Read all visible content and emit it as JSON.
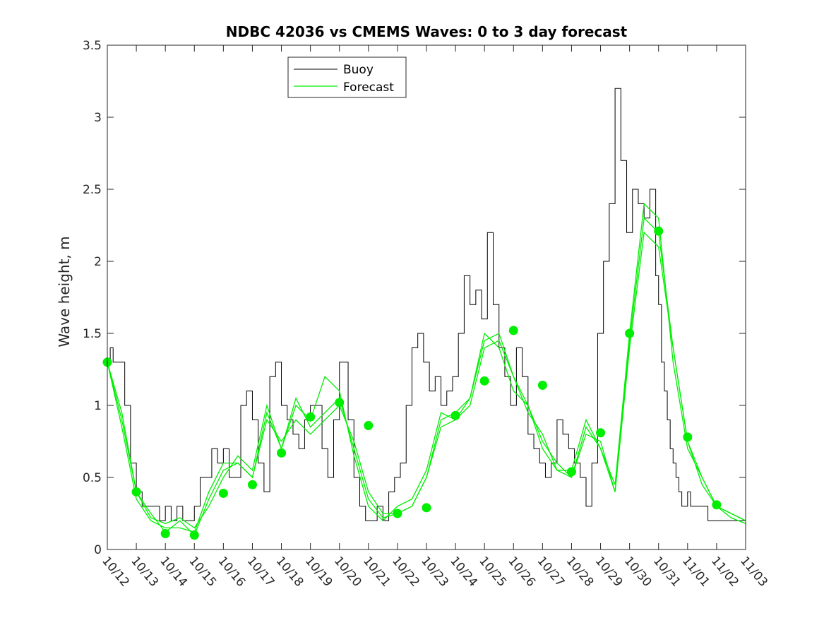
{
  "chart_data": {
    "type": "line",
    "title": "NDBC 42036 vs CMEMS Waves: 0 to 3 day forecast",
    "xlabel": "",
    "ylabel": "Wave height, m",
    "xlim": [
      "10/12",
      "11/03"
    ],
    "ylim": [
      0,
      3.5
    ],
    "x_ticks": [
      "10/12",
      "10/13",
      "10/14",
      "10/15",
      "10/16",
      "10/17",
      "10/18",
      "10/19",
      "10/20",
      "10/21",
      "10/22",
      "10/23",
      "10/24",
      "10/25",
      "10/26",
      "10/27",
      "10/28",
      "10/29",
      "10/30",
      "10/31",
      "11/01",
      "11/02",
      "11/03"
    ],
    "y_ticks": [
      "0",
      "0.5",
      "1",
      "1.5",
      "2",
      "2.5",
      "3",
      "3.5"
    ],
    "grid": false,
    "legend": {
      "placement": "top-left",
      "entries": [
        "Buoy",
        "Forecast"
      ]
    },
    "colors": {
      "buoy": "#000000",
      "forecast": "#00ee00"
    },
    "series": [
      {
        "name": "Buoy",
        "x": [
          0,
          0.1,
          0.2,
          0.3,
          0.5,
          0.6,
          0.8,
          1.0,
          1.2,
          1.4,
          1.6,
          1.8,
          2.0,
          2.2,
          2.4,
          2.6,
          2.8,
          3.0,
          3.2,
          3.4,
          3.6,
          3.8,
          4.0,
          4.2,
          4.4,
          4.6,
          4.8,
          5.0,
          5.2,
          5.4,
          5.6,
          5.8,
          6.0,
          6.2,
          6.4,
          6.6,
          6.8,
          7.0,
          7.2,
          7.4,
          7.6,
          7.8,
          8.0,
          8.1,
          8.3,
          8.5,
          8.7,
          8.9,
          9.1,
          9.3,
          9.5,
          9.7,
          9.9,
          10.1,
          10.3,
          10.5,
          10.7,
          10.9,
          11.1,
          11.3,
          11.5,
          11.7,
          11.9,
          12.1,
          12.3,
          12.5,
          12.7,
          12.9,
          13.1,
          13.3,
          13.5,
          13.7,
          13.9,
          14.1,
          14.3,
          14.5,
          14.7,
          14.9,
          15.1,
          15.3,
          15.5,
          15.7,
          15.9,
          16.1,
          16.3,
          16.5,
          16.7,
          16.9,
          17.1,
          17.3,
          17.5,
          17.7,
          17.9,
          18.1,
          18.3,
          18.5,
          18.7,
          18.9,
          19.0,
          19.1,
          19.2,
          19.3,
          19.4,
          19.5,
          19.6,
          19.7,
          19.8,
          19.9,
          20.0,
          20.1,
          20.3,
          20.5,
          20.7,
          20.9,
          21.1,
          21.3,
          21.5,
          21.7,
          21.9,
          22.0
        ],
        "values": [
          1.3,
          1.4,
          1.3,
          1.3,
          1.3,
          1.0,
          0.6,
          0.4,
          0.3,
          0.3,
          0.3,
          0.2,
          0.3,
          0.2,
          0.3,
          0.2,
          0.2,
          0.3,
          0.5,
          0.5,
          0.7,
          0.6,
          0.7,
          0.5,
          0.5,
          1.0,
          1.1,
          0.9,
          0.6,
          0.4,
          1.2,
          1.3,
          1.0,
          0.9,
          0.8,
          0.7,
          0.9,
          1.0,
          1.0,
          0.7,
          0.5,
          0.9,
          1.3,
          1.3,
          0.9,
          0.5,
          0.3,
          0.2,
          0.2,
          0.3,
          0.2,
          0.4,
          0.5,
          0.6,
          1.0,
          1.4,
          1.5,
          1.3,
          1.1,
          1.2,
          1.0,
          1.1,
          1.2,
          1.5,
          1.9,
          1.7,
          1.8,
          1.6,
          2.2,
          1.7,
          1.4,
          1.2,
          1.0,
          1.4,
          1.2,
          0.8,
          0.7,
          0.6,
          0.5,
          0.6,
          0.9,
          0.8,
          0.7,
          0.6,
          0.5,
          0.3,
          0.6,
          1.5,
          2.0,
          2.4,
          3.2,
          2.7,
          2.2,
          2.5,
          2.4,
          2.3,
          2.5,
          1.9,
          1.7,
          1.3,
          1.1,
          0.9,
          0.7,
          0.6,
          0.5,
          0.4,
          0.3,
          0.3,
          0.4,
          0.3,
          0.3,
          0.3,
          0.2,
          0.2,
          0.2,
          0.2,
          0.2,
          0.2,
          0.2,
          0.2
        ]
      },
      {
        "name": "Forecast",
        "x": [
          0,
          0.5,
          1.0,
          1.5,
          2.0,
          2.5,
          3.0,
          3.5,
          4.0,
          4.5,
          5.0,
          5.5,
          6.0,
          6.5,
          7.0,
          7.5,
          8.0,
          8.5,
          9.0,
          9.5,
          10.0,
          10.5,
          11.0,
          11.5,
          12.0,
          12.5,
          13.0,
          13.5,
          14.0,
          14.5,
          15.0,
          15.5,
          16.0,
          16.5,
          17.0,
          17.5,
          18.0,
          18.5,
          19.0,
          19.5,
          20.0,
          20.5,
          21.0,
          21.5,
          22.0
        ],
        "values": [
          1.3,
          0.9,
          0.4,
          0.25,
          0.12,
          0.2,
          0.1,
          0.35,
          0.55,
          0.6,
          0.5,
          0.95,
          0.7,
          1.05,
          0.85,
          0.95,
          1.05,
          0.7,
          0.35,
          0.22,
          0.25,
          0.3,
          0.5,
          0.9,
          0.95,
          1.05,
          1.45,
          1.5,
          1.2,
          1.0,
          0.75,
          0.6,
          0.5,
          0.85,
          0.7,
          0.4,
          1.45,
          2.3,
          2.2,
          1.4,
          0.75,
          0.45,
          0.3,
          0.25,
          0.2
        ]
      },
      {
        "name": "",
        "x": [
          0,
          0.5,
          1.0,
          1.5,
          2.0,
          2.5,
          3.0,
          3.5,
          4.0,
          4.5,
          5.0,
          5.5,
          6.0,
          6.5,
          7.0,
          7.5,
          8.0,
          8.5,
          9.0,
          9.5,
          10.0,
          10.5,
          11.0,
          11.5,
          12.0,
          12.5,
          13.0,
          13.5,
          14.0,
          14.5,
          15.0,
          15.5,
          16.0,
          16.5,
          17.0,
          17.5,
          18.0,
          18.5,
          19.0,
          19.5,
          20.0,
          20.5,
          21.0,
          21.5,
          22.0
        ],
        "values": [
          1.3,
          0.85,
          0.35,
          0.2,
          0.15,
          0.15,
          0.12,
          0.4,
          0.6,
          0.6,
          0.5,
          0.9,
          0.75,
          0.9,
          0.8,
          0.9,
          1.0,
          0.75,
          0.4,
          0.25,
          0.25,
          0.3,
          0.5,
          0.85,
          0.9,
          1.0,
          1.4,
          1.45,
          1.2,
          0.95,
          0.8,
          0.55,
          0.5,
          0.8,
          0.75,
          0.4,
          1.4,
          2.2,
          2.1,
          1.4,
          0.75,
          0.5,
          0.3,
          0.22,
          0.18
        ]
      },
      {
        "name": "",
        "x": [
          0,
          0.5,
          1.0,
          1.5,
          2.0,
          2.5,
          3.0,
          3.5,
          4.0,
          4.5,
          5.0,
          5.5,
          6.0,
          6.5,
          7.0,
          7.5,
          8.0,
          8.5,
          9.0,
          9.5,
          10.0,
          10.5,
          11.0,
          11.5,
          12.0,
          12.5,
          13.0,
          13.5,
          14.0,
          14.5,
          15.0,
          15.5,
          16.0,
          16.5,
          17.0,
          17.5,
          18.0,
          18.5,
          19.0,
          19.5,
          20.0,
          20.5,
          21.0,
          21.5,
          22.0
        ],
        "values": [
          1.3,
          0.95,
          0.4,
          0.22,
          0.18,
          0.22,
          0.15,
          0.3,
          0.5,
          0.65,
          0.55,
          1.0,
          0.7,
          1.0,
          0.9,
          1.2,
          1.1,
          0.65,
          0.3,
          0.2,
          0.3,
          0.35,
          0.55,
          0.95,
          0.9,
          1.05,
          1.5,
          1.4,
          1.1,
          1.0,
          0.7,
          0.55,
          0.55,
          0.9,
          0.7,
          0.45,
          1.5,
          2.4,
          2.3,
          1.3,
          0.7,
          0.5,
          0.3,
          0.25,
          0.2
        ]
      }
    ],
    "markers": {
      "x": [
        0,
        1,
        2,
        3,
        4,
        5,
        6,
        7,
        8,
        9,
        10,
        11,
        12,
        13,
        14,
        15,
        16,
        17,
        18,
        19,
        20,
        21
      ],
      "values": [
        1.3,
        0.4,
        0.11,
        0.1,
        0.39,
        0.45,
        0.67,
        0.92,
        1.02,
        0.86,
        0.25,
        0.29,
        0.93,
        1.17,
        1.52,
        1.14,
        0.54,
        0.81,
        1.5,
        2.21,
        0.78,
        0.31
      ]
    }
  }
}
